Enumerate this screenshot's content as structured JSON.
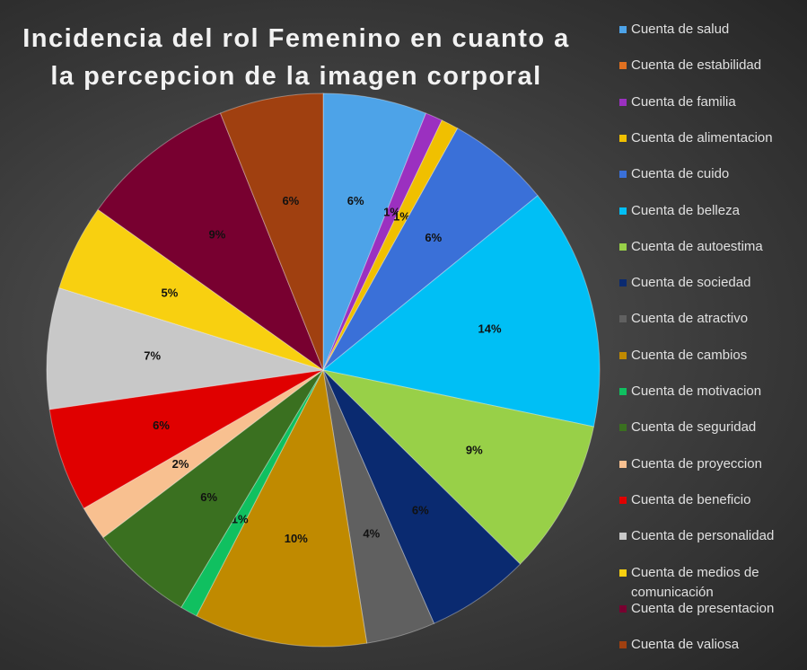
{
  "chart_data": {
    "type": "pie",
    "title": "Incidencia del rol Femenino en cuanto a la percepcion de la imagen corporal",
    "categories": [
      "Cuenta de salud",
      "Cuenta de estabilidad",
      "Cuenta de familia",
      "Cuenta de alimentacion",
      "Cuenta de cuido",
      "Cuenta de belleza",
      "Cuenta de autoestima",
      "Cuenta de sociedad",
      "Cuenta de atractivo",
      "Cuenta de cambios",
      "Cuenta de motivacion",
      "Cuenta de seguridad",
      "Cuenta de proyeccion",
      "Cuenta de beneficio",
      "Cuenta de personalidad",
      "Cuenta de medios de comunicación",
      "Cuenta de presentacion",
      "Cuenta de valiosa"
    ],
    "values": [
      6,
      0,
      1,
      1,
      6,
      14,
      9,
      6,
      4,
      10,
      1,
      6,
      2,
      6,
      7,
      5,
      9,
      6
    ],
    "value_labels": [
      "6%",
      null,
      "1%",
      "1%",
      "6%",
      "14%",
      "9%",
      "6%",
      "4%",
      "10%",
      "1%",
      "6%",
      "2%",
      "6%",
      "7%",
      "5%",
      "9%",
      "6%"
    ],
    "colors": [
      "#4da3e8",
      "#e07020",
      "#9b30c0",
      "#f0c000",
      "#3a70d8",
      "#00bff5",
      "#98d048",
      "#0a2a70",
      "#606060",
      "#c08a00",
      "#10c060",
      "#3a7020",
      "#f8c090",
      "#e00000",
      "#c8c8c8",
      "#f8d010",
      "#780030",
      "#a04010"
    ],
    "legend": "right"
  }
}
